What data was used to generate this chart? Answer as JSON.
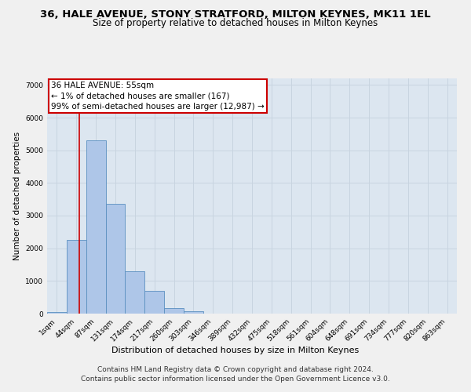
{
  "title": "36, HALE AVENUE, STONY STRATFORD, MILTON KEYNES, MK11 1EL",
  "subtitle": "Size of property relative to detached houses in Milton Keynes",
  "xlabel": "Distribution of detached houses by size in Milton Keynes",
  "ylabel": "Number of detached properties",
  "footer_line1": "Contains HM Land Registry data © Crown copyright and database right 2024.",
  "footer_line2": "Contains public sector information licensed under the Open Government Licence v3.0.",
  "bar_labels": [
    "1sqm",
    "44sqm",
    "87sqm",
    "131sqm",
    "174sqm",
    "217sqm",
    "260sqm",
    "303sqm",
    "346sqm",
    "389sqm",
    "432sqm",
    "475sqm",
    "518sqm",
    "561sqm",
    "604sqm",
    "648sqm",
    "691sqm",
    "734sqm",
    "777sqm",
    "820sqm",
    "863sqm"
  ],
  "bar_values": [
    50,
    2250,
    5300,
    3350,
    1300,
    700,
    170,
    80,
    0,
    0,
    0,
    0,
    0,
    0,
    0,
    0,
    0,
    0,
    0,
    0,
    0
  ],
  "bar_color": "#aec6e8",
  "bar_edge_color": "#5a8fc0",
  "annotation_text": "36 HALE AVENUE: 55sqm\n← 1% of detached houses are smaller (167)\n99% of semi-detached houses are larger (12,987) →",
  "annotation_box_color": "#ffffff",
  "annotation_box_edge_color": "#cc0000",
  "vline_color": "#cc0000",
  "vline_pos": 1.15,
  "ylim": [
    0,
    7200
  ],
  "yticks": [
    0,
    1000,
    2000,
    3000,
    4000,
    5000,
    6000,
    7000
  ],
  "grid_color": "#c8d4e0",
  "bg_color": "#dce6f0",
  "fig_bg_color": "#f0f0f0",
  "title_fontsize": 9.5,
  "subtitle_fontsize": 8.5,
  "xlabel_fontsize": 8,
  "ylabel_fontsize": 7.5,
  "tick_fontsize": 6.5,
  "annotation_fontsize": 7.5,
  "footer_fontsize": 6.5
}
